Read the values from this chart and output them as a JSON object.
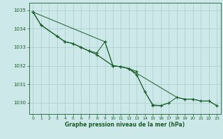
{
  "background_color": "#cce8e8",
  "grid_color": "#aacccc",
  "line_color": "#1a5c2a",
  "text_color": "#1a5c2a",
  "xlabel": "Graphe pression niveau de la mer (hPa)",
  "xlim": [
    -0.5,
    23.5
  ],
  "ylim": [
    1029.4,
    1035.4
  ],
  "yticks": [
    1030,
    1031,
    1032,
    1033,
    1034,
    1035
  ],
  "xticks": [
    0,
    1,
    2,
    3,
    4,
    5,
    6,
    7,
    8,
    9,
    10,
    11,
    12,
    13,
    14,
    15,
    16,
    17,
    18,
    19,
    20,
    21,
    22,
    23
  ],
  "series1_x": [
    0,
    1,
    3,
    4,
    5,
    6,
    7,
    8,
    9,
    10,
    11,
    12,
    13
  ],
  "series1_y": [
    1034.9,
    1034.2,
    1033.6,
    1033.3,
    1033.2,
    1033.0,
    1032.8,
    1032.7,
    1033.3,
    1032.0,
    1031.95,
    1031.85,
    1031.7
  ],
  "series2_x": [
    0,
    1,
    3,
    4,
    5,
    6,
    7,
    8,
    10,
    11,
    12,
    13,
    14,
    15,
    16,
    17
  ],
  "series2_y": [
    1034.9,
    1034.2,
    1033.6,
    1033.3,
    1033.2,
    1033.0,
    1032.8,
    1032.6,
    1032.0,
    1031.95,
    1031.85,
    1031.5,
    1030.6,
    1029.85,
    1029.85,
    1030.0
  ],
  "series3_x": [
    0,
    1,
    3,
    4,
    5,
    6,
    7,
    8,
    10,
    11,
    12,
    13,
    14,
    15,
    16,
    17,
    18,
    19,
    20,
    21,
    22,
    23
  ],
  "series3_y": [
    1034.9,
    1034.2,
    1033.6,
    1033.3,
    1033.2,
    1033.0,
    1032.8,
    1032.6,
    1032.0,
    1031.95,
    1031.85,
    1031.5,
    1030.6,
    1029.9,
    1029.85,
    1030.0,
    1030.3,
    1030.2,
    1030.2,
    1030.1,
    1030.1,
    1029.85
  ],
  "series4_x": [
    0,
    9,
    10,
    11,
    12,
    18,
    19,
    20,
    21,
    22,
    23
  ],
  "series4_y": [
    1034.9,
    1033.3,
    1032.0,
    1031.95,
    1031.85,
    1030.3,
    1030.2,
    1030.2,
    1030.1,
    1030.1,
    1029.85
  ]
}
